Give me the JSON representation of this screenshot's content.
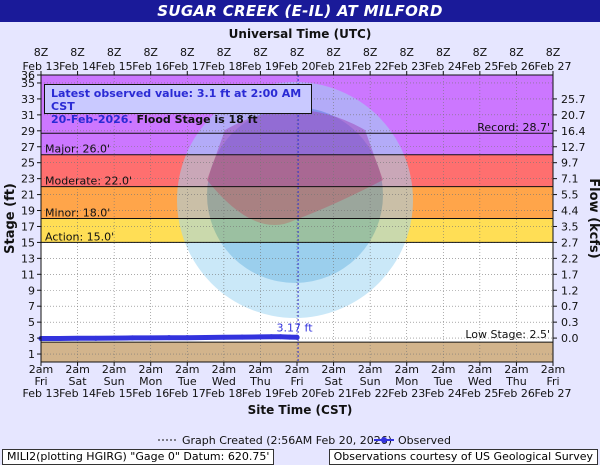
{
  "title": "SUGAR CREEK  (E-IL) AT MILFORD",
  "top_axis_title": "Universal Time (UTC)",
  "bottom_axis_title": "Site Time (CST)",
  "y_left_label": "Stage (ft)",
  "y_right_label": "Flow (kcfs)",
  "latest": {
    "line1": "Latest observed value: 3.1 ft at 2:00 AM CST",
    "line2_date": "20-Feb-2026.",
    "line2_flood": "Flood Stage is 18 ft"
  },
  "legend": {
    "created": "Graph Created (2:56AM Feb 20, 2026)",
    "observed": "Observed"
  },
  "footer": {
    "left": "MILI2(plotting HGIRG) \"Gage 0\" Datum: 620.75'",
    "right": "Observations courtesy of US Geological Survey"
  },
  "watermark": "NATIONAL OCEANIC AND ATMOSPHERIC ADMINISTRATION  U.S. DEPARTMENT OF COMMERCE",
  "colors": {
    "record": "#cc77ff",
    "major": "#ff6f6f",
    "moderate": "#ffa54a",
    "minor": "#ffde55",
    "action": "#ffffc4",
    "below_low": "#d2b48c",
    "observed": "#3333dd",
    "title_bar": "#1a1a99"
  },
  "chart_data": {
    "type": "line",
    "ylim": [
      0,
      36
    ],
    "y_ticks": [
      1,
      3,
      5,
      7,
      9,
      11,
      13,
      15,
      17,
      19,
      21,
      23,
      25,
      27,
      29,
      31,
      33,
      35,
      36
    ],
    "flow_ticks": [
      {
        "stage": 3,
        "label": "0.0"
      },
      {
        "stage": 5,
        "label": "0.3"
      },
      {
        "stage": 7,
        "label": "0.7"
      },
      {
        "stage": 9,
        "label": "1.2"
      },
      {
        "stage": 11,
        "label": "1.7"
      },
      {
        "stage": 13,
        "label": "2.2"
      },
      {
        "stage": 15,
        "label": "2.7"
      },
      {
        "stage": 17,
        "label": "3.5"
      },
      {
        "stage": 19,
        "label": "4.4"
      },
      {
        "stage": 21,
        "label": "5.5"
      },
      {
        "stage": 23,
        "label": "7.1"
      },
      {
        "stage": 25,
        "label": "9.7"
      },
      {
        "stage": 27,
        "label": "12.7"
      },
      {
        "stage": 29,
        "label": "16.4"
      },
      {
        "stage": 31,
        "label": "20.7"
      },
      {
        "stage": 33,
        "label": "25.7"
      }
    ],
    "bottom_days": [
      {
        "t1": "2am",
        "t2": "Fri",
        "t3": "Feb 13"
      },
      {
        "t1": "2am",
        "t2": "Sat",
        "t3": "Feb 14"
      },
      {
        "t1": "2am",
        "t2": "Sun",
        "t3": "Feb 15"
      },
      {
        "t1": "2am",
        "t2": "Mon",
        "t3": "Feb 16"
      },
      {
        "t1": "2am",
        "t2": "Tue",
        "t3": "Feb 17"
      },
      {
        "t1": "2am",
        "t2": "Wed",
        "t3": "Feb 18"
      },
      {
        "t1": "2am",
        "t2": "Thu",
        "t3": "Feb 19"
      },
      {
        "t1": "2am",
        "t2": "Fri",
        "t3": "Feb 20"
      },
      {
        "t1": "2am",
        "t2": "Sat",
        "t3": "Feb 21"
      },
      {
        "t1": "2am",
        "t2": "Sun",
        "t3": "Feb 22"
      },
      {
        "t1": "2am",
        "t2": "Mon",
        "t3": "Feb 23"
      },
      {
        "t1": "2am",
        "t2": "Tue",
        "t3": "Feb 24"
      },
      {
        "t1": "2am",
        "t2": "Wed",
        "t3": "Feb 25"
      },
      {
        "t1": "2am",
        "t2": "Thu",
        "t3": "Feb 26"
      },
      {
        "t1": "2am",
        "t2": "Fri",
        "t3": "Feb 27"
      }
    ],
    "top_days": [
      {
        "t1": "8Z",
        "t2": "Feb 13"
      },
      {
        "t1": "8Z",
        "t2": "Feb 14"
      },
      {
        "t1": "8Z",
        "t2": "Feb 15"
      },
      {
        "t1": "8Z",
        "t2": "Feb 16"
      },
      {
        "t1": "8Z",
        "t2": "Feb 17"
      },
      {
        "t1": "8Z",
        "t2": "Feb 18"
      },
      {
        "t1": "8Z",
        "t2": "Feb 19"
      },
      {
        "t1": "8Z",
        "t2": "Feb 20"
      },
      {
        "t1": "8Z",
        "t2": "Feb 21"
      },
      {
        "t1": "8Z",
        "t2": "Feb 22"
      },
      {
        "t1": "8Z",
        "t2": "Feb 23"
      },
      {
        "t1": "8Z",
        "t2": "Feb 24"
      },
      {
        "t1": "8Z",
        "t2": "Feb 25"
      },
      {
        "t1": "8Z",
        "t2": "Feb 26"
      },
      {
        "t1": "8Z",
        "t2": "Feb 27"
      }
    ],
    "flood_categories": [
      {
        "name": "record",
        "label": "Record: 28.7'",
        "stage": 28.7
      },
      {
        "name": "major",
        "label": "Major: 26.0'",
        "stage": 26.0
      },
      {
        "name": "moderate",
        "label": "Moderate: 22.0'",
        "stage": 22.0
      },
      {
        "name": "minor",
        "label": "Minor: 18.0'",
        "stage": 18.0
      },
      {
        "name": "action",
        "label": "Action: 15.0'",
        "stage": 15.0
      },
      {
        "name": "low",
        "label": "Low Stage: 2.5'",
        "stage": 2.5
      }
    ],
    "graph_created_day": 7.03,
    "peak_label": "3.17 ft",
    "peak_day": 6.55,
    "peak_value": 3.17,
    "series": [
      {
        "name": "Observed",
        "x_days": [
          0,
          0.5,
          1,
          1.5,
          2,
          2.5,
          3,
          3.5,
          4,
          4.5,
          5,
          5.5,
          6,
          6.3,
          6.55,
          6.8,
          7.0
        ],
        "values": [
          2.95,
          2.95,
          2.97,
          2.97,
          3.0,
          3.02,
          3.02,
          3.05,
          3.05,
          3.07,
          3.1,
          3.12,
          3.15,
          3.16,
          3.17,
          3.12,
          3.1
        ]
      }
    ]
  }
}
